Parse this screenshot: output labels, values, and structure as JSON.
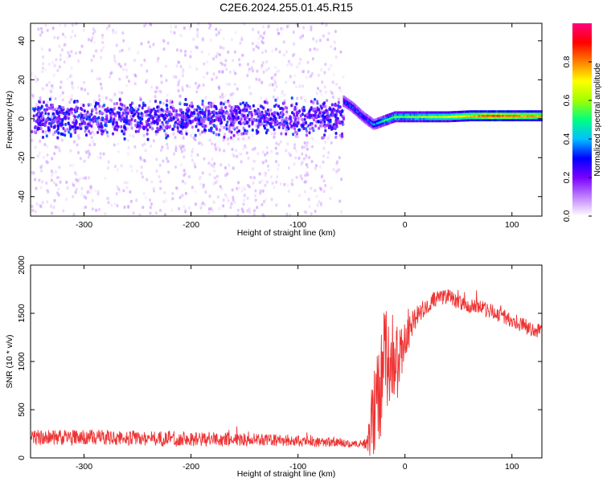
{
  "title": "C2E6.2024.255.01.45.R15",
  "chart_data": [
    {
      "type": "heatmap",
      "xlabel": "Height of straight line (km)",
      "ylabel": "Frequency (Hz)",
      "xlim": [
        -350,
        128
      ],
      "ylim": [
        -50,
        49
      ],
      "xticks": [
        -300,
        -200,
        -100,
        0,
        100
      ],
      "yticks": [
        -40,
        -20,
        0,
        20,
        40
      ],
      "colorbar": {
        "label": "Normalized spectral amplitude",
        "range": [
          0,
          1
        ],
        "ticks": [
          "0.0",
          "0.2",
          "0.4",
          "0.6",
          "0.8"
        ],
        "colormap": [
          "#ffffff",
          "#c080ff",
          "#7a00ff",
          "#0000ff",
          "#00c0ff",
          "#00ff80",
          "#a0ff00",
          "#ffff00",
          "#ff8000",
          "#ff0000",
          "#ff0080"
        ]
      },
      "noise_region_x": [
        -350,
        -58
      ],
      "noise_band_hz": [
        -8,
        8
      ],
      "signal_ridge": {
        "x": [
          -58,
          -50,
          -40,
          -30,
          -20,
          -10,
          0,
          20,
          40,
          60,
          80,
          100,
          128
        ],
        "freq_hz": [
          9,
          6,
          1,
          -3,
          -1,
          1,
          1,
          1,
          1,
          1.5,
          1.5,
          1.5,
          1.5
        ],
        "amplitude": [
          0.3,
          0.35,
          0.3,
          0.35,
          0.5,
          0.55,
          0.55,
          0.6,
          0.65,
          0.75,
          0.85,
          0.8,
          0.75
        ]
      }
    },
    {
      "type": "line",
      "xlabel": "Height of straight line (km)",
      "ylabel": "SNR (10 * v/v)",
      "xlim": [
        -350,
        128
      ],
      "ylim": [
        0,
        2000
      ],
      "xticks": [
        -300,
        -200,
        -100,
        0,
        100
      ],
      "yticks": [
        0,
        500,
        1000,
        1500,
        2000
      ],
      "series": [
        {
          "color": "#ee3333",
          "x": [
            -350,
            -300,
            -250,
            -200,
            -150,
            -100,
            -60,
            -40,
            -36,
            -30,
            -25,
            -20,
            -15,
            -10,
            -5,
            0,
            10,
            20,
            30,
            40,
            50,
            60,
            70,
            80,
            90,
            100,
            110,
            120,
            128
          ],
          "y": [
            210,
            215,
            205,
            195,
            190,
            175,
            160,
            140,
            150,
            400,
            700,
            900,
            1150,
            950,
            1000,
            1200,
            1450,
            1580,
            1650,
            1680,
            1610,
            1580,
            1560,
            1520,
            1480,
            1430,
            1380,
            1330,
            1300
          ],
          "noise_amplitude": [
            80,
            80,
            80,
            80,
            70,
            60,
            50,
            40,
            60,
            450,
            550,
            600,
            550,
            450,
            350,
            200,
            120,
            90,
            80,
            80,
            80,
            80,
            80,
            80,
            80,
            80,
            80,
            80,
            80
          ]
        }
      ]
    }
  ]
}
